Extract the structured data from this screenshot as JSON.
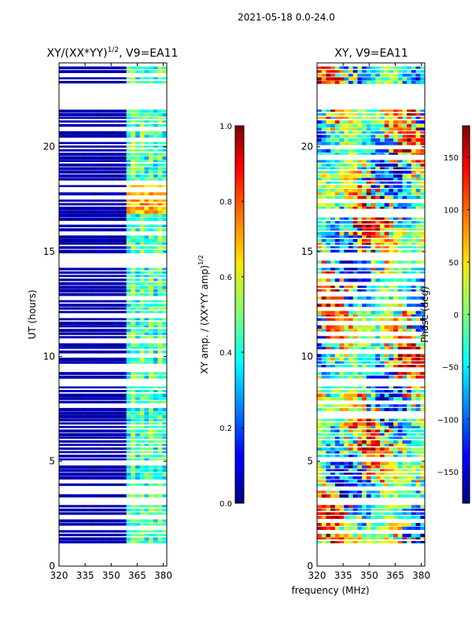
{
  "figure": {
    "suptitle": "2021-05-18 0.0-24.0",
    "xlabel": "frequency (MHz)"
  },
  "chart_data": [
    {
      "type": "heatmap",
      "title": "XY/(XX*YY)",
      "title_exponent": "1/2",
      "title_suffix": ", V9=EA11",
      "xlabel": "",
      "ylabel": "UT (hours)",
      "xlim": [
        320,
        382
      ],
      "ylim": [
        0,
        24
      ],
      "xticks": [
        "320",
        "335",
        "350",
        "365",
        "380"
      ],
      "xtick_values": [
        320,
        335,
        350,
        365,
        380
      ],
      "yticks": [
        "0",
        "5",
        "10",
        "15",
        "20"
      ],
      "ytick_values": [
        0,
        5,
        10,
        15,
        20
      ],
      "colorbar": {
        "label": "XY amp. / (XX*YY amp)",
        "label_exponent": "1/2",
        "range": [
          0.0,
          1.0
        ],
        "ticks": [
          "0.0",
          "0.2",
          "0.4",
          "0.6",
          "0.8",
          "1.0"
        ],
        "tick_values": [
          0.0,
          0.2,
          0.4,
          0.6,
          0.8,
          1.0
        ]
      },
      "flagged_hours": [
        [
          21.8,
          23.0
        ],
        [
          9.2,
          9.4
        ],
        [
          8.6,
          8.9
        ],
        [
          5.6,
          5.7
        ],
        [
          3.0,
          3.3
        ],
        [
          1.0,
          1.1
        ],
        [
          0.1,
          0.9
        ]
      ],
      "data_hours": [
        1.1,
        23.9
      ],
      "bright_band_mhz": [
        359,
        382
      ],
      "peak_hours": [
        16.8,
        18.3
      ]
    },
    {
      "type": "heatmap",
      "title": "XY, V9=EA11",
      "xlabel": "",
      "ylabel": "",
      "xlim": [
        320,
        382
      ],
      "ylim": [
        0,
        24
      ],
      "xticks": [
        "320",
        "335",
        "350",
        "365",
        "380"
      ],
      "xtick_values": [
        320,
        335,
        350,
        365,
        380
      ],
      "yticks": [
        "0",
        "5",
        "10",
        "15",
        "20"
      ],
      "ytick_values": [
        0,
        5,
        10,
        15,
        20
      ],
      "colorbar": {
        "label": "Phase (deg)",
        "range": [
          -180,
          180
        ],
        "ticks": [
          "−150",
          "−100",
          "−50",
          "0",
          "50",
          "100",
          "150"
        ],
        "tick_values": [
          -150,
          -100,
          -50,
          0,
          50,
          100,
          150
        ]
      },
      "flagged_hours": [
        [
          21.8,
          23.0
        ],
        [
          9.2,
          9.4
        ],
        [
          8.6,
          8.9
        ],
        [
          5.6,
          5.7
        ],
        [
          3.0,
          3.3
        ],
        [
          1.0,
          1.1
        ],
        [
          0.1,
          0.9
        ]
      ],
      "data_hours": [
        1.1,
        23.9
      ]
    }
  ]
}
